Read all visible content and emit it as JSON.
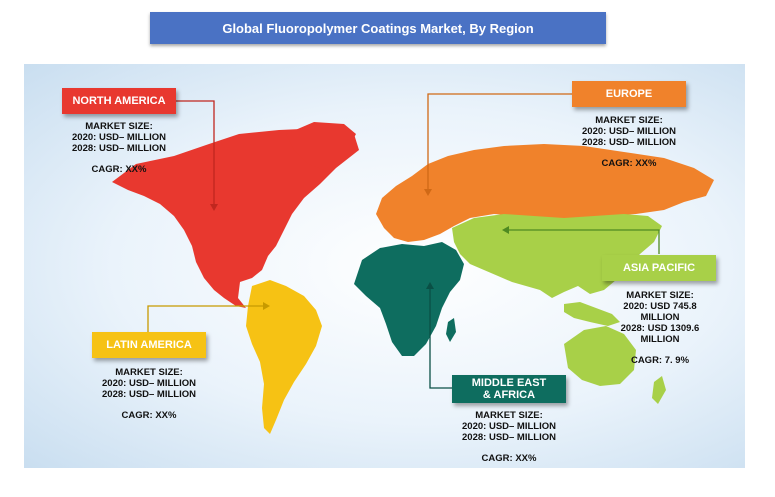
{
  "title": "Global Fluoropolymer Coatings Market, By Region",
  "colors": {
    "title_bg": "#4a72c4",
    "north_america": "#e8382f",
    "europe": "#f0822b",
    "asia_pacific": "#a8d048",
    "latin_america": "#f6c214",
    "middle_east_africa": "#0e6d5f"
  },
  "regions": {
    "north_america": {
      "label": "NORTH AMERICA",
      "market_size_label": "MARKET SIZE:",
      "line_2020": "2020: USD– MILLION",
      "line_2028": "2028: USD– MILLION",
      "cagr": "CAGR: XX%"
    },
    "europe": {
      "label": "EUROPE",
      "market_size_label": "MARKET SIZE:",
      "line_2020": "2020: USD– MILLION",
      "line_2028": "2028: USD– MILLION",
      "cagr": "CAGR: XX%"
    },
    "asia_pacific": {
      "label": "ASIA PACIFIC",
      "market_size_label": "MARKET SIZE:",
      "line_2020a": "2020: USD 745.8",
      "line_2020b": "MILLION",
      "line_2028a": "2028: USD 1309.6",
      "line_2028b": "MILLION",
      "cagr": "CAGR: 7. 9%"
    },
    "latin_america": {
      "label": "LATIN AMERICA",
      "market_size_label": "MARKET SIZE:",
      "line_2020": "2020: USD– MILLION",
      "line_2028": "2028: USD– MILLION",
      "cagr": "CAGR: XX%"
    },
    "middle_east_africa": {
      "label_line1": "MIDDLE EAST",
      "label_line2": "& AFRICA",
      "market_size_label": "MARKET SIZE:",
      "line_2020": "2020: USD– MILLION",
      "line_2028": "2028: USD– MILLION",
      "cagr": "CAGR: XX%"
    }
  }
}
